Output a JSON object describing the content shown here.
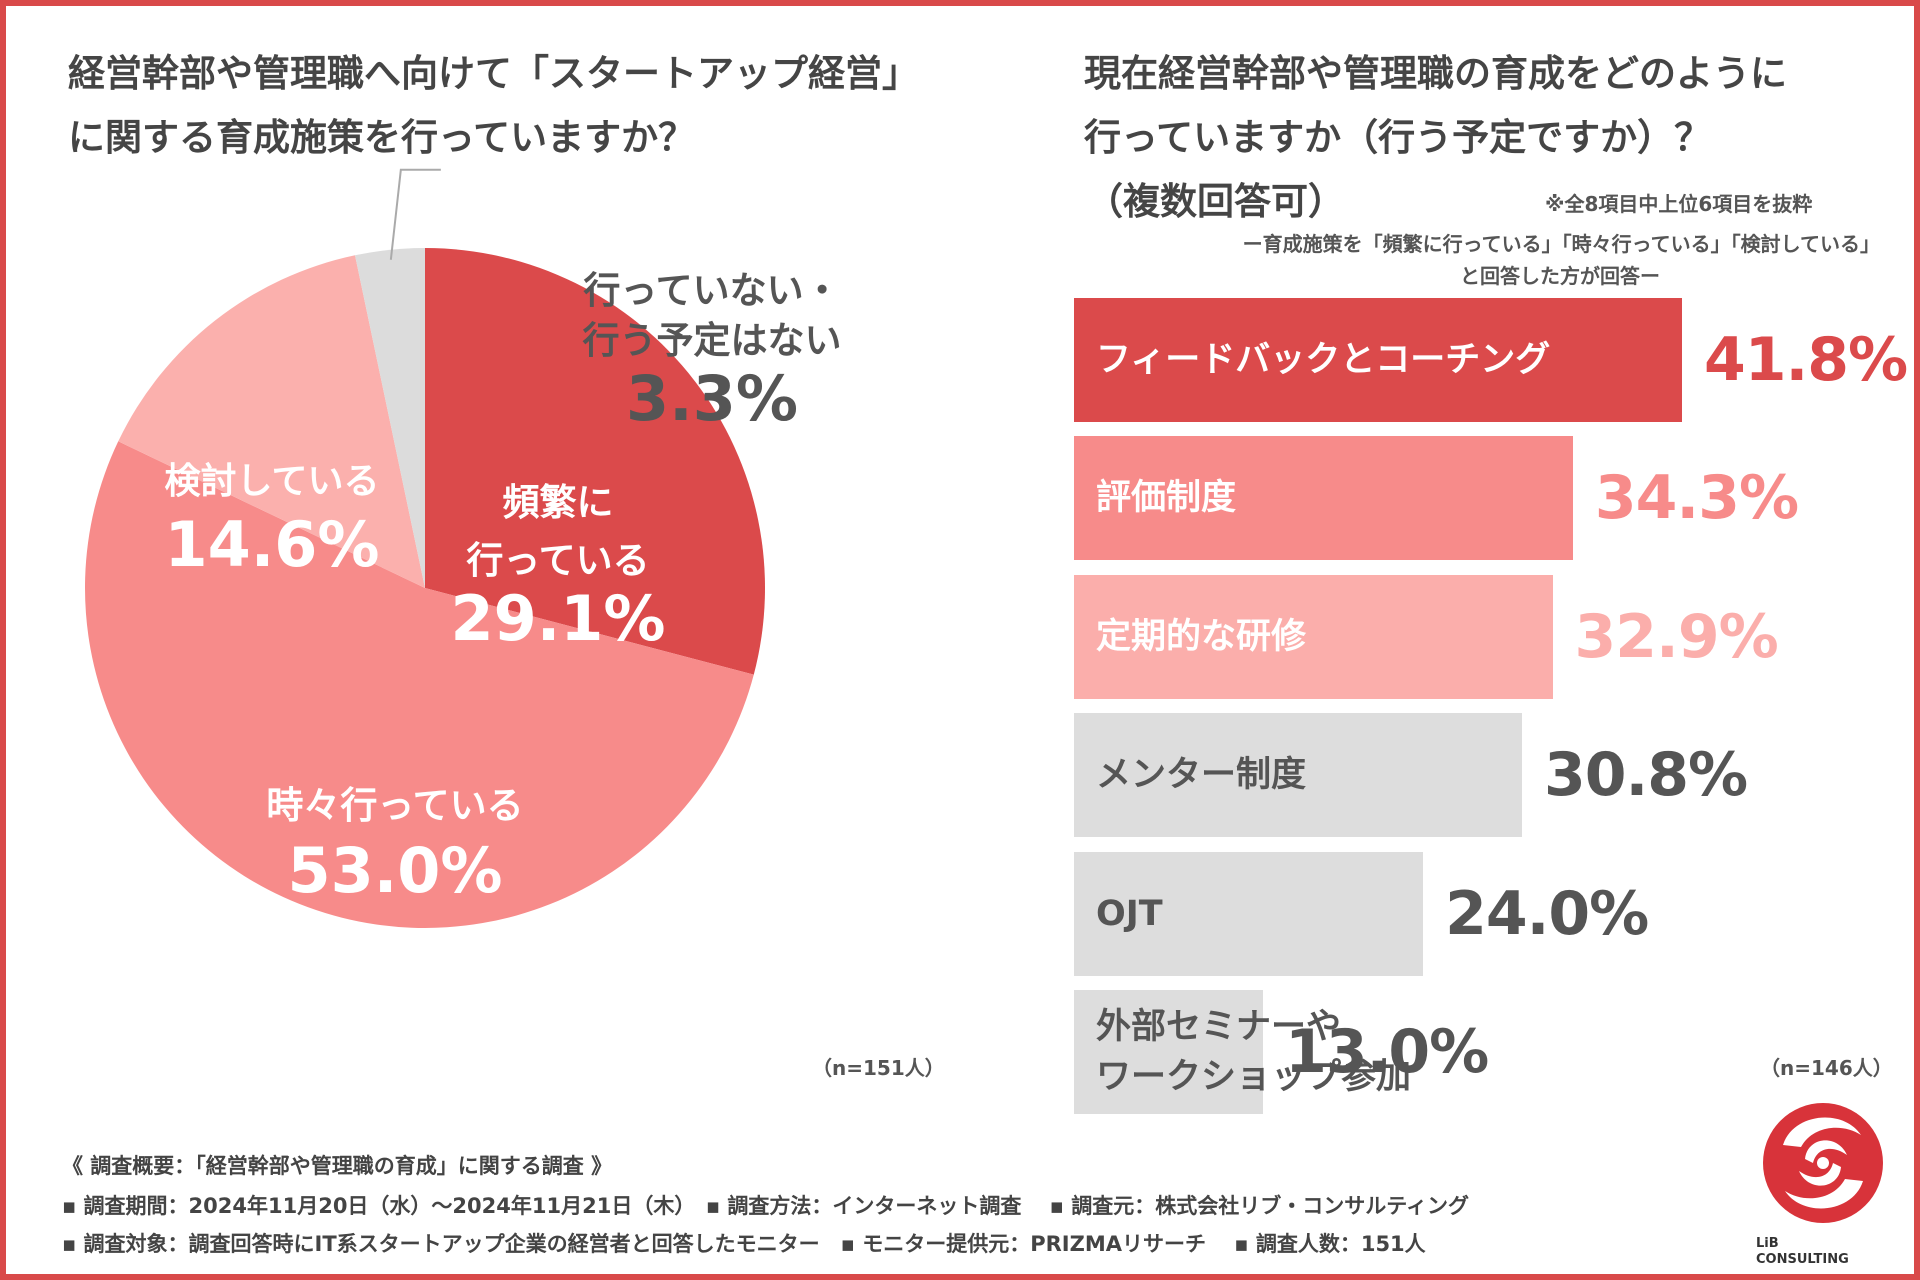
{
  "left": {
    "title_line1": "経営幹部や管理職へ向けて「スタートアップ経営」",
    "title_line2": "に関する育成施策を行っていますか？",
    "sample": "（n=151人）"
  },
  "right": {
    "title_line1": "現在経営幹部や管理職の育成をどのように",
    "title_line2": "行っていますか（行う予定ですか）？",
    "title_line3": "（複数回答可）",
    "excerpt_note": "※全8項目中上位6項目を抜粋",
    "condition_line1": "ー育成施策を「頻繁に行っている」「時々行っている」「検討している」",
    "condition_line2": "と回答した方が回答ー",
    "sample": "（n=146人）"
  },
  "chart_data": [
    {
      "type": "pie",
      "title": "経営幹部や管理職へ向けて「スタートアップ経営」に関する育成施策を行っていますか？",
      "slices": [
        {
          "label_lines": [
            "頻繁に",
            "行っている"
          ],
          "value": 29.1,
          "value_text": "29.1%",
          "color": "#db4a4b",
          "text_color": "#ffffff"
        },
        {
          "label_lines": [
            "時々行っている"
          ],
          "value": 53.0,
          "value_text": "53.0%",
          "color": "#f78b8a",
          "text_color": "#ffffff"
        },
        {
          "label_lines": [
            "検討している"
          ],
          "value": 14.6,
          "value_text": "14.6%",
          "color": "#fbb0ad",
          "text_color": "#ffffff"
        },
        {
          "label_lines": [
            "行っていない・",
            "行う予定はない"
          ],
          "value": 3.3,
          "value_text": "3.3%",
          "color": "#dcdcdc",
          "text_color": "#555555"
        }
      ]
    },
    {
      "type": "bar",
      "orientation": "horizontal",
      "title": "現在経営幹部や管理職の育成をどのように行っていますか（行う予定ですか）？（複数回答可）",
      "xlim": [
        0,
        45
      ],
      "categories": [
        {
          "label": "フィードバックとコーチング",
          "value": 41.8,
          "value_text": "41.8%",
          "bar_color": "#db4a4b",
          "label_color": "#ffffff",
          "value_color": "#db4a4b"
        },
        {
          "label": "評価制度",
          "value": 34.3,
          "value_text": "34.3%",
          "bar_color": "#f78b8a",
          "label_color": "#ffffff",
          "value_color": "#f78b8a"
        },
        {
          "label": "定期的な研修",
          "value": 32.9,
          "value_text": "32.9%",
          "bar_color": "#fbaeab",
          "label_color": "#ffffff",
          "value_color": "#fbaeab"
        },
        {
          "label": "メンター制度",
          "value": 30.8,
          "value_text": "30.8%",
          "bar_color": "#dddddd",
          "label_color": "#555555",
          "value_color": "#555555"
        },
        {
          "label": "OJT",
          "value": 24.0,
          "value_text": "24.0%",
          "bar_color": "#dddddd",
          "label_color": "#555555",
          "value_color": "#555555"
        },
        {
          "label": "外部セミナーや\nワークショップ参加",
          "value": 13.0,
          "value_text": "13.0%",
          "bar_color": "#dddddd",
          "label_color": "#555555",
          "value_color": "#555555"
        }
      ]
    }
  ],
  "footer": {
    "line1": "《 調査概要：「経営幹部や管理職の育成」に関する調査 》",
    "line2": "▪ 調査期間：2024年11月20日（水）〜2024年11月21日（木）　▪ 調査方法：インターネット調査　 ▪ 調査元：株式会社リブ・コンサルティング",
    "line3": "▪ 調査対象：調査回答時にIT系スタートアップ企業の経営者と回答したモニター　▪ モニター提供元：PRIZMAリサーチ　 ▪ 調査人数：151人"
  },
  "logo": {
    "line1": "LiB",
    "line2": "CONSULTING",
    "color": "#d8333a"
  }
}
